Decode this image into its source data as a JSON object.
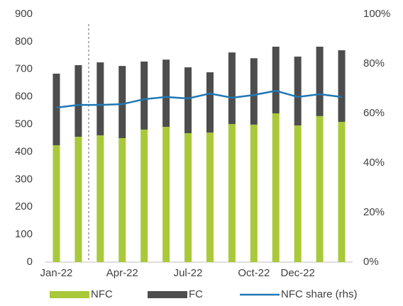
{
  "chart_data": {
    "type": "bar",
    "categories": [
      "Jan-22",
      null,
      null,
      "Apr-22",
      null,
      null,
      "Jul-22",
      null,
      null,
      "Oct-22",
      null,
      "Dec-22",
      null,
      null
    ],
    "series": [
      {
        "name": "NFC",
        "color": "#a9c93a",
        "values": [
          424,
          455,
          460,
          450,
          481,
          491,
          468,
          470,
          501,
          499,
          540,
          496,
          530,
          509
        ]
      },
      {
        "name": "FC",
        "color": "#4d4d4d",
        "values": [
          260,
          260,
          265,
          262,
          247,
          244,
          239,
          219,
          260,
          241,
          242,
          250,
          252,
          260
        ]
      },
      {
        "name": "NFC share (rhs)",
        "color": "#1f77b4",
        "type": "line",
        "axis": "y2",
        "values": [
          62.3,
          63.4,
          63.4,
          63.7,
          65.7,
          66.6,
          66,
          68,
          66.3,
          67.4,
          69.1,
          66.6,
          67.7,
          66.6
        ]
      }
    ],
    "stacked": true,
    "ylim": [
      0,
      900
    ],
    "yticks": [
      0,
      100,
      200,
      300,
      400,
      500,
      600,
      700,
      800,
      900
    ],
    "y2lim": [
      0,
      100
    ],
    "y2ticks": [
      {
        "value": 0,
        "label": "0%"
      },
      {
        "value": 20,
        "label": "20%"
      },
      {
        "value": 40,
        "label": "40%"
      },
      {
        "value": 60,
        "label": "60%"
      },
      {
        "value": 80,
        "label": "80%"
      },
      {
        "value": 100,
        "label": "100%"
      }
    ],
    "legend": "bottom"
  }
}
